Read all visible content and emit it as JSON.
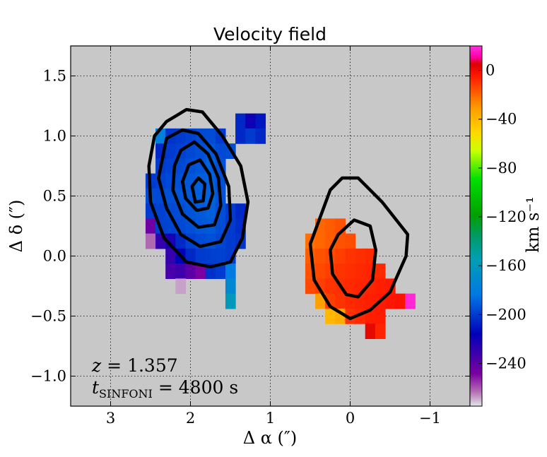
{
  "chart_data": {
    "type": "heatmap",
    "title": "Velocity field",
    "xlabel": "Δ α (″)",
    "ylabel": "Δ δ (″)",
    "xlim": [
      3.5,
      -1.5
    ],
    "ylim": [
      -1.25,
      1.75
    ],
    "x_ticks": [
      3,
      2,
      1,
      0,
      -1
    ],
    "y_ticks": [
      -1.0,
      -0.5,
      0.0,
      0.5,
      1.0,
      1.5
    ],
    "x_tick_labels": [
      "3",
      "2",
      "1",
      "0",
      "−1"
    ],
    "y_tick_labels": [
      "−1.0",
      "−0.5",
      "0.0",
      "0.5",
      "1.0",
      "1.5"
    ],
    "grid": true,
    "background": "#c8c8c8",
    "colorbar": {
      "label": "km s⁻¹",
      "range": [
        -275,
        20
      ],
      "ticks": [
        0,
        -40,
        -80,
        -120,
        -160,
        -200,
        -240
      ],
      "tick_labels": [
        "0",
        "−40",
        "−80",
        "−120",
        "−160",
        "−200",
        "−240"
      ],
      "colormap": "spectral"
    },
    "annotations": {
      "redshift_label": "z = 1.357",
      "z_var": "z",
      "z_value": "= 1.357",
      "exposure_var": "t",
      "exposure_sub": "SINFONI",
      "exposure_value": "= 4800 s"
    },
    "pixel_size_arcsec": 0.125,
    "velocity_maps": [
      {
        "name": "northeast-component",
        "pixels": [
          [
            1.375,
            1.125,
            -205
          ],
          [
            1.25,
            1.125,
            -220
          ],
          [
            1.125,
            1.125,
            -210
          ],
          [
            1.375,
            1.0,
            -205
          ],
          [
            1.25,
            1.0,
            -200
          ],
          [
            1.125,
            1.0,
            -205
          ],
          [
            2.125,
            1.0,
            -200
          ],
          [
            2.0,
            1.0,
            -198
          ],
          [
            1.875,
            1.0,
            -196
          ],
          [
            1.75,
            1.0,
            -195
          ],
          [
            1.625,
            1.0,
            -200
          ],
          [
            2.375,
            1.0,
            -178
          ],
          [
            2.25,
            1.0,
            -202
          ],
          [
            1.5,
            0.875,
            -195
          ],
          [
            2.375,
            0.875,
            -205
          ],
          [
            2.25,
            0.875,
            -200
          ],
          [
            2.125,
            0.875,
            -198
          ],
          [
            2.0,
            0.875,
            -196
          ],
          [
            1.875,
            0.875,
            -194
          ],
          [
            1.75,
            0.875,
            -192
          ],
          [
            1.625,
            0.875,
            -196
          ],
          [
            2.375,
            0.75,
            -200
          ],
          [
            2.25,
            0.75,
            -198
          ],
          [
            2.125,
            0.75,
            -196
          ],
          [
            2.0,
            0.75,
            -194
          ],
          [
            1.875,
            0.75,
            -192
          ],
          [
            1.75,
            0.75,
            -190
          ],
          [
            1.625,
            0.75,
            -194
          ],
          [
            2.5,
            0.625,
            -200
          ],
          [
            2.375,
            0.625,
            -198
          ],
          [
            2.25,
            0.625,
            -196
          ],
          [
            2.125,
            0.625,
            -194
          ],
          [
            2.0,
            0.625,
            -192
          ],
          [
            1.875,
            0.625,
            -190
          ],
          [
            1.75,
            0.625,
            -190
          ],
          [
            1.625,
            0.625,
            -194
          ],
          [
            2.5,
            0.5,
            -195
          ],
          [
            2.375,
            0.5,
            -196
          ],
          [
            2.25,
            0.5,
            -194
          ],
          [
            2.125,
            0.5,
            -193
          ],
          [
            2.0,
            0.5,
            -192
          ],
          [
            1.875,
            0.5,
            -190
          ],
          [
            1.75,
            0.5,
            -189
          ],
          [
            1.625,
            0.5,
            -193
          ],
          [
            2.5,
            0.375,
            -200
          ],
          [
            2.375,
            0.375,
            -198
          ],
          [
            2.25,
            0.375,
            -196
          ],
          [
            2.125,
            0.375,
            -195
          ],
          [
            2.0,
            0.375,
            -193
          ],
          [
            1.875,
            0.375,
            -191
          ],
          [
            1.75,
            0.375,
            -190
          ],
          [
            1.625,
            0.375,
            -194
          ],
          [
            1.5,
            0.375,
            -200
          ],
          [
            1.375,
            0.375,
            -205
          ],
          [
            2.5,
            0.25,
            -245
          ],
          [
            2.375,
            0.25,
            -198
          ],
          [
            2.25,
            0.25,
            -197
          ],
          [
            2.125,
            0.25,
            -196
          ],
          [
            2.0,
            0.25,
            -194
          ],
          [
            1.875,
            0.25,
            -192
          ],
          [
            1.75,
            0.25,
            -191
          ],
          [
            1.625,
            0.25,
            -195
          ],
          [
            1.5,
            0.25,
            -200
          ],
          [
            1.375,
            0.25,
            -204
          ],
          [
            2.5,
            0.125,
            -262
          ],
          [
            2.375,
            0.125,
            -230
          ],
          [
            2.25,
            0.125,
            -222
          ],
          [
            2.125,
            0.125,
            -205
          ],
          [
            2.0,
            0.125,
            -198
          ],
          [
            1.875,
            0.125,
            -196
          ],
          [
            1.75,
            0.125,
            -194
          ],
          [
            1.625,
            0.125,
            -197
          ],
          [
            1.5,
            0.125,
            -200
          ],
          [
            1.375,
            0.125,
            -202
          ],
          [
            2.25,
            0.0,
            -230
          ],
          [
            2.125,
            0.0,
            -215
          ],
          [
            2.0,
            0.0,
            -205
          ],
          [
            1.875,
            0.0,
            -200
          ],
          [
            1.75,
            0.0,
            -199
          ],
          [
            1.625,
            0.0,
            -198
          ],
          [
            1.5,
            0.0,
            -200
          ],
          [
            2.25,
            -0.125,
            -235
          ],
          [
            2.125,
            -0.125,
            -232
          ],
          [
            2.0,
            -0.125,
            -240
          ],
          [
            1.875,
            -0.125,
            -248
          ],
          [
            1.75,
            -0.125,
            -203
          ],
          [
            1.625,
            -0.125,
            -200
          ],
          [
            2.125,
            -0.25,
            -268
          ],
          [
            1.5,
            -0.125,
            -180
          ],
          [
            1.5,
            -0.25,
            -172
          ],
          [
            1.5,
            -0.375,
            -160
          ]
        ]
      },
      {
        "name": "southwest-component",
        "pixels": [
          [
            0.375,
            0.25,
            -20
          ],
          [
            0.25,
            0.25,
            -18
          ],
          [
            0.125,
            0.25,
            -16
          ],
          [
            0.5,
            0.125,
            -22
          ],
          [
            0.375,
            0.125,
            -20
          ],
          [
            0.25,
            0.125,
            -18
          ],
          [
            0.125,
            0.125,
            -16
          ],
          [
            0.0,
            0.125,
            -15
          ],
          [
            0.5,
            0.0,
            -18
          ],
          [
            0.375,
            0.0,
            -16
          ],
          [
            0.25,
            0.0,
            -14
          ],
          [
            0.125,
            0.0,
            -12
          ],
          [
            0.0,
            0.0,
            -10
          ],
          [
            -0.125,
            0.0,
            -9
          ],
          [
            -0.25,
            0.0,
            -8
          ],
          [
            0.5,
            -0.125,
            -16
          ],
          [
            0.375,
            -0.125,
            -14
          ],
          [
            0.25,
            -0.125,
            -12
          ],
          [
            0.125,
            -0.125,
            -10
          ],
          [
            0.0,
            -0.125,
            -9
          ],
          [
            -0.125,
            -0.125,
            -8
          ],
          [
            -0.25,
            -0.125,
            -7
          ],
          [
            -0.375,
            -0.125,
            -8
          ],
          [
            0.5,
            -0.25,
            -14
          ],
          [
            0.375,
            -0.25,
            -12
          ],
          [
            0.25,
            -0.25,
            -10
          ],
          [
            0.125,
            -0.25,
            -9
          ],
          [
            0.0,
            -0.25,
            -8
          ],
          [
            -0.125,
            -0.25,
            -7
          ],
          [
            -0.25,
            -0.25,
            -7
          ],
          [
            -0.375,
            -0.25,
            -6
          ],
          [
            -0.5,
            -0.25,
            -5
          ],
          [
            0.375,
            -0.375,
            -32
          ],
          [
            0.25,
            -0.375,
            -12
          ],
          [
            0.125,
            -0.375,
            -10
          ],
          [
            0.0,
            -0.375,
            -8
          ],
          [
            -0.125,
            -0.375,
            -7
          ],
          [
            -0.25,
            -0.375,
            -6
          ],
          [
            -0.375,
            -0.375,
            -5
          ],
          [
            -0.5,
            -0.375,
            -4
          ],
          [
            -0.625,
            -0.375,
            -3
          ],
          [
            -0.75,
            -0.375,
            18
          ],
          [
            0.25,
            -0.5,
            -40
          ],
          [
            0.125,
            -0.5,
            -36
          ],
          [
            0.0,
            -0.5,
            -10
          ],
          [
            -0.125,
            -0.5,
            -8
          ],
          [
            -0.25,
            -0.5,
            -6
          ],
          [
            -0.375,
            -0.5,
            -5
          ],
          [
            -0.25,
            -0.625,
            2
          ],
          [
            -0.375,
            -0.625,
            -7
          ]
        ]
      }
    ],
    "contours": [
      {
        "name": "contour-ne-1",
        "center": [
          1.9,
          0.57
        ],
        "rx": 0.7,
        "ry": 0.66,
        "angle": -10,
        "points": [
          [
            2.45,
            1.0
          ],
          [
            2.3,
            1.12
          ],
          [
            2.05,
            1.22
          ],
          [
            1.85,
            1.2
          ],
          [
            1.6,
            1.0
          ],
          [
            1.37,
            0.75
          ],
          [
            1.28,
            0.45
          ],
          [
            1.35,
            0.15
          ],
          [
            1.5,
            -0.05
          ],
          [
            1.75,
            -0.09
          ],
          [
            2.05,
            -0.05
          ],
          [
            2.33,
            0.15
          ],
          [
            2.5,
            0.45
          ],
          [
            2.52,
            0.75
          ],
          [
            2.45,
            1.0
          ]
        ]
      },
      {
        "name": "contour-ne-2",
        "points": [
          [
            2.3,
            0.98
          ],
          [
            2.1,
            1.05
          ],
          [
            1.9,
            1.02
          ],
          [
            1.68,
            0.85
          ],
          [
            1.52,
            0.58
          ],
          [
            1.5,
            0.3
          ],
          [
            1.62,
            0.12
          ],
          [
            1.88,
            0.08
          ],
          [
            2.12,
            0.18
          ],
          [
            2.3,
            0.4
          ],
          [
            2.4,
            0.65
          ],
          [
            2.3,
            0.98
          ]
        ]
      },
      {
        "name": "contour-ne-3",
        "points": [
          [
            2.12,
            0.88
          ],
          [
            1.95,
            0.95
          ],
          [
            1.78,
            0.85
          ],
          [
            1.65,
            0.65
          ],
          [
            1.62,
            0.42
          ],
          [
            1.7,
            0.26
          ],
          [
            1.9,
            0.24
          ],
          [
            2.1,
            0.35
          ],
          [
            2.22,
            0.55
          ],
          [
            2.2,
            0.75
          ],
          [
            2.12,
            0.88
          ]
        ]
      },
      {
        "name": "contour-ne-4",
        "points": [
          [
            2.02,
            0.76
          ],
          [
            1.88,
            0.8
          ],
          [
            1.76,
            0.68
          ],
          [
            1.72,
            0.52
          ],
          [
            1.78,
            0.4
          ],
          [
            1.92,
            0.38
          ],
          [
            2.06,
            0.48
          ],
          [
            2.1,
            0.62
          ],
          [
            2.02,
            0.76
          ]
        ]
      },
      {
        "name": "contour-ne-5",
        "points": [
          [
            1.98,
            0.58
          ],
          [
            1.9,
            0.65
          ],
          [
            1.82,
            0.6
          ],
          [
            1.84,
            0.46
          ],
          [
            1.94,
            0.45
          ],
          [
            1.98,
            0.58
          ]
        ]
      },
      {
        "name": "contour-sw-1",
        "points": [
          [
            0.25,
            0.55
          ],
          [
            0.1,
            0.65
          ],
          [
            -0.1,
            0.65
          ],
          [
            -0.4,
            0.45
          ],
          [
            -0.72,
            0.18
          ],
          [
            -0.7,
            0.0
          ],
          [
            -0.5,
            -0.3
          ],
          [
            -0.25,
            -0.45
          ],
          [
            0.0,
            -0.52
          ],
          [
            0.25,
            -0.42
          ],
          [
            0.45,
            -0.2
          ],
          [
            0.5,
            0.1
          ],
          [
            0.25,
            0.55
          ]
        ]
      },
      {
        "name": "contour-sw-2",
        "points": [
          [
            0.15,
            0.18
          ],
          [
            -0.05,
            0.3
          ],
          [
            -0.25,
            0.25
          ],
          [
            -0.32,
            0.05
          ],
          [
            -0.28,
            -0.2
          ],
          [
            -0.1,
            -0.34
          ],
          [
            0.05,
            -0.32
          ],
          [
            0.22,
            -0.15
          ],
          [
            0.25,
            0.05
          ],
          [
            0.15,
            0.18
          ]
        ]
      }
    ]
  }
}
